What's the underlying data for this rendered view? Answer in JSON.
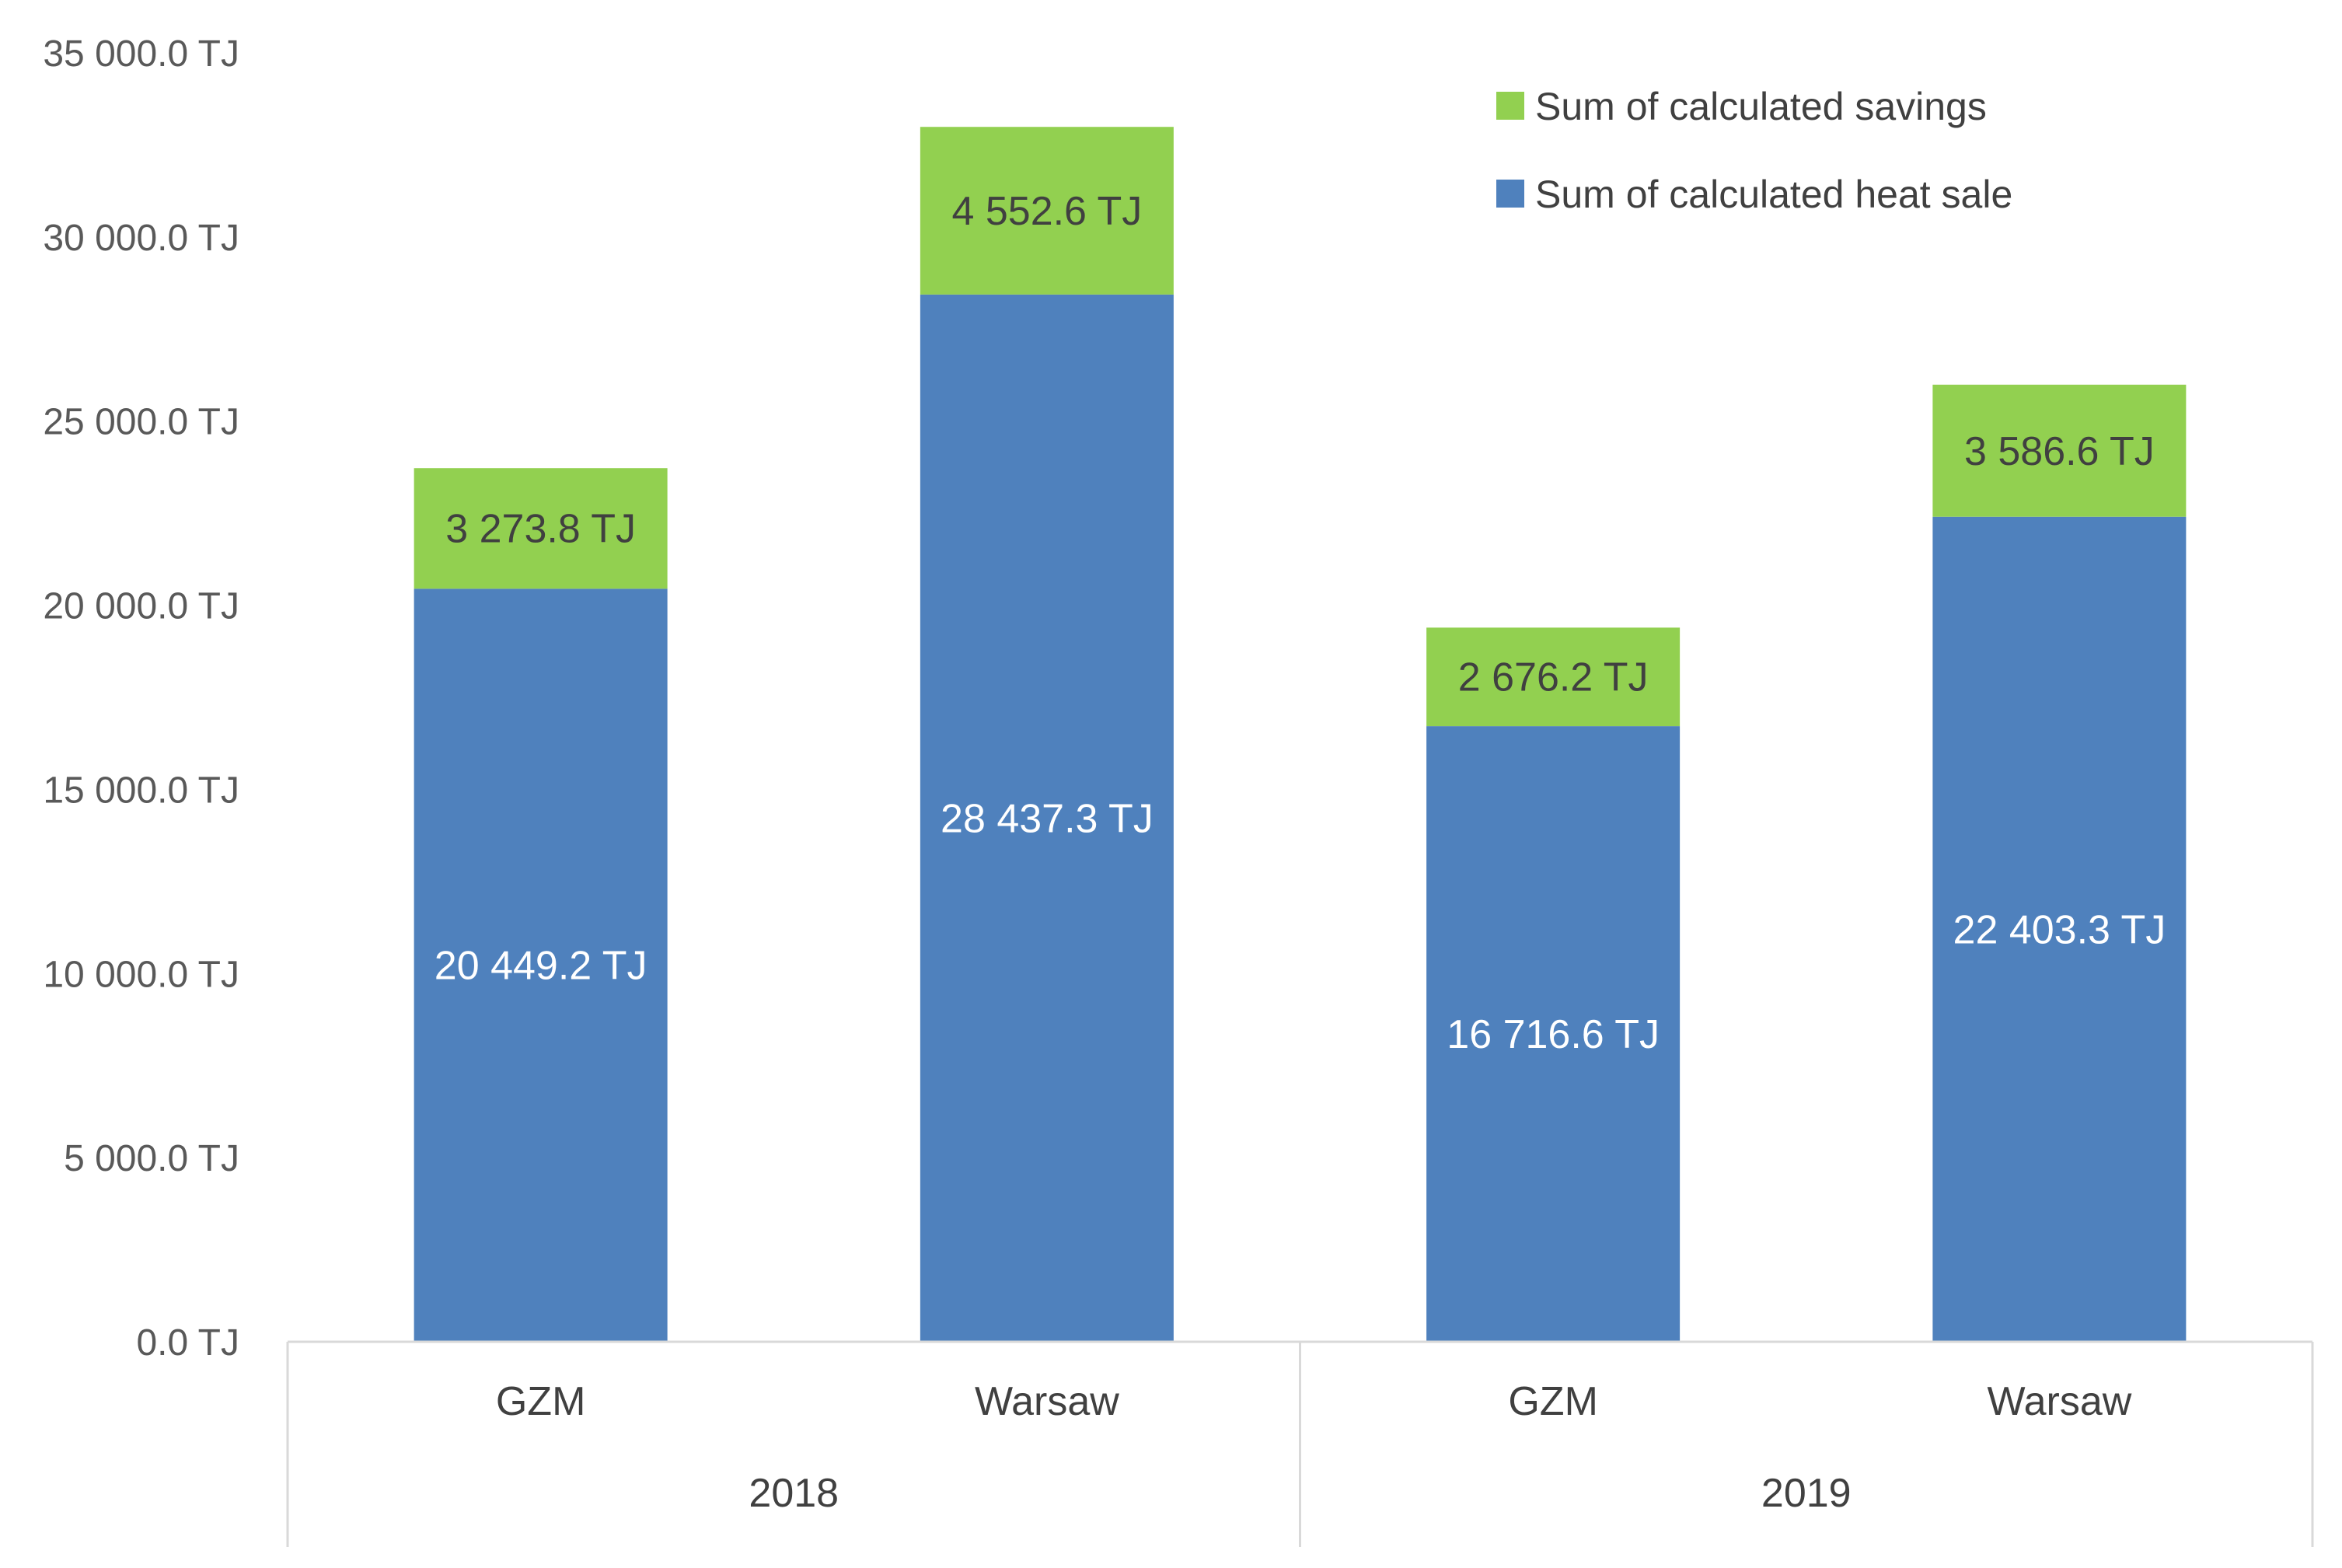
{
  "chart_data": {
    "type": "bar",
    "stacked": true,
    "title": "",
    "xlabel": "",
    "ylabel": "",
    "ylim": [
      0,
      35000
    ],
    "y_ticks": [
      0,
      5000,
      10000,
      15000,
      20000,
      25000,
      30000,
      35000
    ],
    "y_tick_labels": [
      "0.0 TJ",
      "5 000.0 TJ",
      "10 000.0 TJ",
      "15 000.0 TJ",
      "20 000.0 TJ",
      "25 000.0 TJ",
      "30 000.0 TJ",
      "35 000.0 TJ"
    ],
    "categories": [
      "GZM",
      "Warsaw",
      "GZM",
      "Warsaw"
    ],
    "groups": [
      {
        "label": "2018",
        "categories": [
          0,
          1
        ]
      },
      {
        "label": "2019",
        "categories": [
          2,
          3
        ]
      }
    ],
    "series": [
      {
        "name": "Sum of calculated heat sale",
        "color": "#4f81bd",
        "label_color": "#ffffff",
        "values": [
          20449.2,
          28437.3,
          16716.6,
          22403.3
        ],
        "labels": [
          "20 449.2 TJ",
          "28 437.3 TJ",
          "16 716.6 TJ",
          "22 403.3 TJ"
        ]
      },
      {
        "name": "Sum of calculated savings",
        "color": "#92d050",
        "label_color": "#404040",
        "values": [
          3273.8,
          4552.6,
          2676.2,
          3586.6
        ],
        "labels": [
          "3 273.8 TJ",
          "4 552.6 TJ",
          "2 676.2 TJ",
          "3 586.6 TJ"
        ]
      }
    ],
    "legend": {
      "position": "top-right",
      "order": [
        1,
        0
      ]
    },
    "grid": false
  }
}
